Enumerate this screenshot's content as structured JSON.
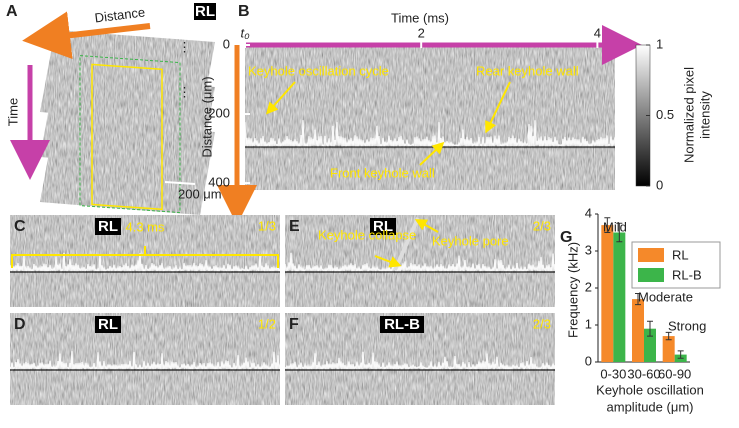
{
  "panel_a": {
    "label": "A",
    "distance": "Distance",
    "time": "Time",
    "tag": "RL",
    "scale_bar": "200 μm"
  },
  "panel_b": {
    "label": "B",
    "x_label": "Time (ms)",
    "y_label": "Distance (μm)",
    "xlim": [
      0,
      4.2
    ],
    "xticks": [
      {
        "value": 0,
        "label": "t₀"
      },
      2,
      4
    ],
    "ylim": [
      0,
      420
    ],
    "yticks": [
      0,
      200,
      400
    ],
    "colorbar": {
      "label_lines": [
        "Normalized pixel",
        "intensity"
      ],
      "lim": [
        0,
        1
      ],
      "ticks": [
        0,
        0.5,
        1
      ]
    },
    "annotations": [
      "Keyhole oscillation cycle",
      "Rear keyhole wall",
      "Front keyhole wall"
    ]
  },
  "panels_cf": [
    {
      "label": "C",
      "tag": "RL",
      "fraction": "1/3",
      "span": "4.3 ms"
    },
    {
      "label": "D",
      "tag": "RL",
      "fraction": "1/2"
    },
    {
      "label": "E",
      "tag": "RL",
      "fraction": "2/3",
      "annotations": [
        "Keyhole collapse",
        "Keyhole pore"
      ]
    },
    {
      "label": "F",
      "tag": "RL-B",
      "fraction": "2/3"
    }
  ],
  "chart_data": {
    "type": "bar",
    "label": "G",
    "y_label": "Frequency (kHz)",
    "x_label_lines": [
      "Keyhole oscillation",
      "amplitude (μm)"
    ],
    "categories": [
      "0-30",
      "30-60",
      "60-90"
    ],
    "series": [
      {
        "name": "RL",
        "color": "#f5892a",
        "values": [
          3.7,
          1.7,
          0.7
        ],
        "errors": [
          0.2,
          0.15,
          0.1
        ]
      },
      {
        "name": "RL-B",
        "color": "#3cb54a",
        "values": [
          3.5,
          0.9,
          0.2
        ],
        "errors": [
          0.25,
          0.2,
          0.1
        ]
      }
    ],
    "ylim": [
      0,
      4
    ],
    "yticks": [
      0,
      1,
      2,
      3,
      4
    ],
    "annotations": [
      "Mild",
      "Moderate",
      "Strong"
    ]
  }
}
